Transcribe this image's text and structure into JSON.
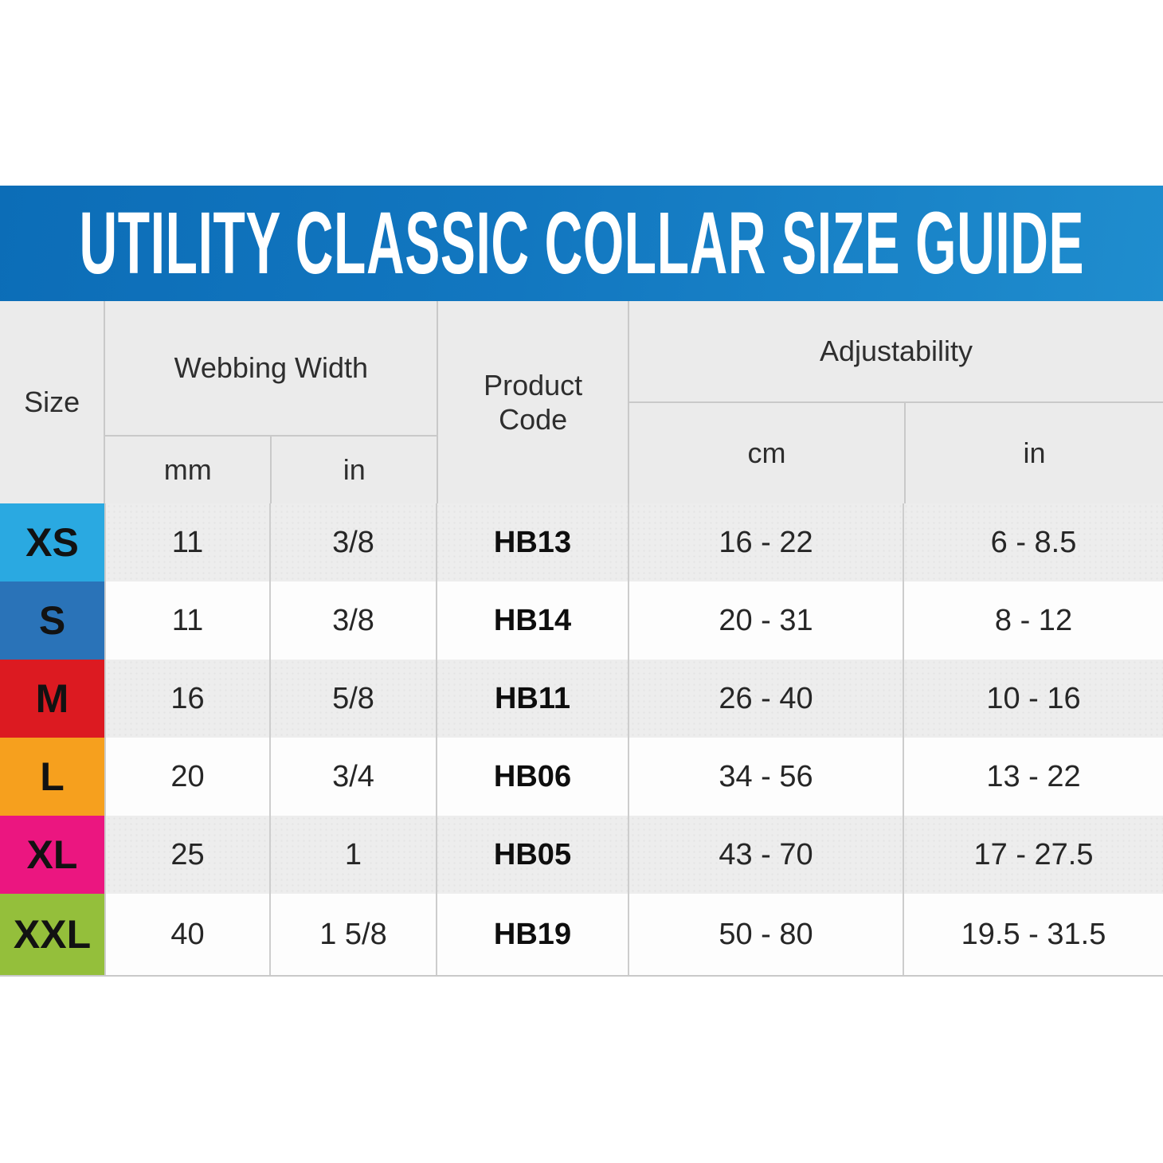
{
  "title": "UTILITY CLASSIC COLLAR SIZE GUIDE",
  "colors": {
    "band_gradient_left": "#0c6db7",
    "band_gradient_right": "#1f8dce",
    "header_bg": "#ebebeb",
    "row_alt_bg": "#ededed",
    "border": "#c9c9c9",
    "title_text": "#ffffff"
  },
  "table": {
    "headers": {
      "size": "Size",
      "webbing_width": "Webbing Width",
      "webbing_unit_mm": "mm",
      "webbing_unit_in": "in",
      "product_code": "Product Code",
      "adjustability": "Adjustability",
      "adjust_unit_cm": "cm",
      "adjust_unit_in": "in"
    },
    "rows": [
      {
        "size": "XS",
        "color": "#2aa9e1",
        "webbing_mm": "11",
        "webbing_in": "3/8",
        "product_code": "HB13",
        "adjust_cm": "16 - 22",
        "adjust_in": "6 - 8.5"
      },
      {
        "size": "S",
        "color": "#2a73b8",
        "webbing_mm": "11",
        "webbing_in": "3/8",
        "product_code": "HB14",
        "adjust_cm": "20 - 31",
        "adjust_in": "8 - 12"
      },
      {
        "size": "M",
        "color": "#dc1a21",
        "webbing_mm": "16",
        "webbing_in": "5/8",
        "product_code": "HB11",
        "adjust_cm": "26 - 40",
        "adjust_in": "10 - 16"
      },
      {
        "size": "L",
        "color": "#f6a01e",
        "webbing_mm": "20",
        "webbing_in": "3/4",
        "product_code": "HB06",
        "adjust_cm": "34 - 56",
        "adjust_in": "13 - 22"
      },
      {
        "size": "XL",
        "color": "#eb1680",
        "webbing_mm": "25",
        "webbing_in": "1",
        "product_code": "HB05",
        "adjust_cm": "43 - 70",
        "adjust_in": "17 - 27.5"
      },
      {
        "size": "XXL",
        "color": "#94bf3b",
        "webbing_mm": "40",
        "webbing_in": "1 5/8",
        "product_code": "HB19",
        "adjust_cm": "50 - 80",
        "adjust_in": "19.5 - 31.5"
      }
    ]
  },
  "chart_data": {
    "type": "table",
    "title": "UTILITY CLASSIC COLLAR SIZE GUIDE",
    "columns": [
      "Size",
      "Webbing Width (mm)",
      "Webbing Width (in)",
      "Product Code",
      "Adjustability (cm)",
      "Adjustability (in)"
    ],
    "rows": [
      [
        "XS",
        "11",
        "3/8",
        "HB13",
        "16 - 22",
        "6 - 8.5"
      ],
      [
        "S",
        "11",
        "3/8",
        "HB14",
        "20 - 31",
        "8 - 12"
      ],
      [
        "M",
        "16",
        "5/8",
        "HB11",
        "26 - 40",
        "10 - 16"
      ],
      [
        "L",
        "20",
        "3/4",
        "HB06",
        "34 - 56",
        "13 - 22"
      ],
      [
        "XL",
        "25",
        "1",
        "HB05",
        "43 - 70",
        "17 - 27.5"
      ],
      [
        "XXL",
        "40",
        "1 5/8",
        "HB19",
        "50 - 80",
        "19.5 - 31.5"
      ]
    ],
    "row_swatch_colors": [
      "#2aa9e1",
      "#2a73b8",
      "#dc1a21",
      "#f6a01e",
      "#eb1680",
      "#94bf3b"
    ]
  }
}
